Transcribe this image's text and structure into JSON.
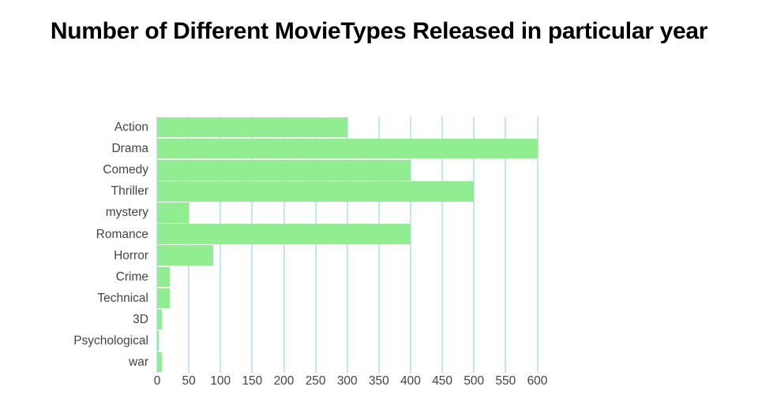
{
  "chart_data": {
    "type": "bar",
    "orientation": "horizontal",
    "title": "Number of Different MovieTypes Released in particular year",
    "categories": [
      "Action",
      "Drama",
      "Comedy",
      "Thriller",
      "mystery",
      "Romance",
      "Horror",
      "Crime",
      "Technical",
      "3D",
      "Psychological",
      "war"
    ],
    "values": [
      300,
      600,
      400,
      500,
      50,
      400,
      88,
      20,
      20,
      8,
      2,
      8
    ],
    "xlabel": "",
    "ylabel": "",
    "x_ticks": [
      0,
      50,
      100,
      150,
      200,
      250,
      300,
      350,
      400,
      450,
      500,
      550,
      600
    ],
    "xlim": [
      0,
      623
    ],
    "grid": true,
    "legend_position": "none",
    "colors": {
      "bar": "#90ee90",
      "grid": "#c5e5f2",
      "tick_text": "#444444",
      "title_text": "#000000",
      "background": "#ffffff"
    }
  }
}
